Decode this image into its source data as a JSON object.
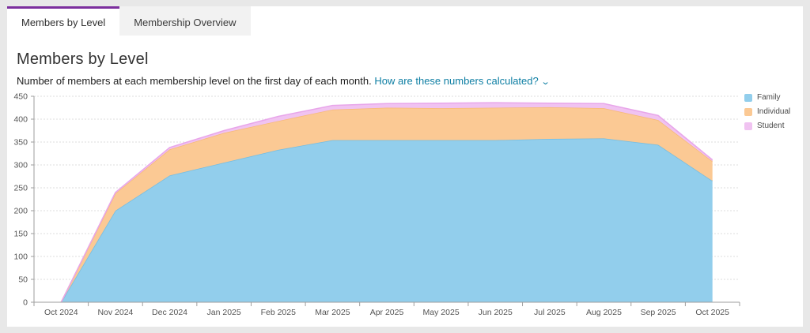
{
  "tabs": [
    {
      "label": "Members by Level",
      "active": true
    },
    {
      "label": "Membership Overview",
      "active": false
    }
  ],
  "header": {
    "title": "Members by Level",
    "subtitle": "Number of members at each membership level on the first day of each month.",
    "link_label": "How are these numbers calculated?",
    "link_chevron": "⌄"
  },
  "colors": {
    "active_tab_accent": "#7b2e9d",
    "link": "#0d7ea3",
    "axis": "#9e9e9e",
    "grid": "#dedede",
    "tick_text": "#555555",
    "page_background": "#e8e8e8",
    "card_background": "#ffffff"
  },
  "chart_data": {
    "type": "area",
    "stacked": true,
    "title": "Members by Level",
    "xlabel": "",
    "ylabel": "",
    "ylim": [
      0,
      450
    ],
    "yticks": [
      0,
      50,
      100,
      150,
      200,
      250,
      300,
      350,
      400,
      450
    ],
    "grid": "horizontal-dashed",
    "legend_position": "right",
    "categories": [
      "Oct 2024",
      "Nov 2024",
      "Dec 2024",
      "Jan 2025",
      "Feb 2025",
      "Mar 2025",
      "Apr 2025",
      "May 2025",
      "Jun 2025",
      "Jul 2025",
      "Aug 2025",
      "Sep 2025",
      "Oct 2025"
    ],
    "series": [
      {
        "name": "Family",
        "fill": "#92ceec",
        "stroke": "#74bde2",
        "values": [
          0,
          200,
          277,
          305,
          333,
          354,
          354,
          354,
          354,
          357,
          358,
          344,
          265
        ]
      },
      {
        "name": "Individual",
        "fill": "#fbc994",
        "stroke": "#f6b977",
        "values": [
          0,
          38,
          57,
          65,
          63,
          67,
          71,
          70,
          71,
          69,
          66,
          54,
          43
        ]
      },
      {
        "name": "Student",
        "fill": "#f0c3f1",
        "stroke": "#e8a6ea",
        "values": [
          0,
          2,
          4,
          5,
          10,
          9,
          9,
          11,
          11,
          9,
          10,
          10,
          3
        ]
      }
    ]
  }
}
